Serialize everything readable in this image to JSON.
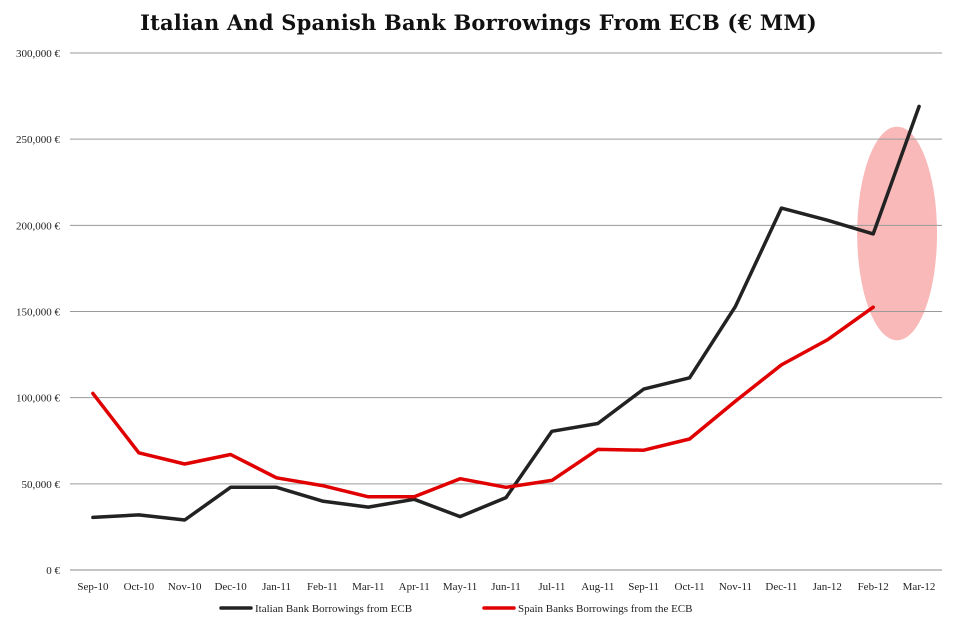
{
  "chart_data": {
    "type": "line",
    "title": "Italian And Spanish Bank Borrowings From ECB (€ MM)",
    "categories": [
      "Sep-10",
      "Oct-10",
      "Nov-10",
      "Dec-10",
      "Jan-11",
      "Feb-11",
      "Mar-11",
      "Apr-11",
      "May-11",
      "Jun-11",
      "Jul-11",
      "Aug-11",
      "Sep-11",
      "Oct-11",
      "Nov-11",
      "Dec-11",
      "Jan-12",
      "Feb-12",
      "Mar-12"
    ],
    "ylim": [
      0,
      300000
    ],
    "y_ticks": [
      0,
      50000,
      100000,
      150000,
      200000,
      250000,
      300000
    ],
    "y_tick_labels": [
      "0 €",
      "50,000 €",
      "100,000 €",
      "150,000 €",
      "200,000 €",
      "250,000 €",
      "300,000 €"
    ],
    "grid": "horizontal",
    "legend_position": "bottom",
    "series": [
      {
        "name": "Italian Bank Borrowings from ECB",
        "color": "#222222",
        "values": [
          30500,
          32000,
          29000,
          48000,
          48000,
          40000,
          36500,
          41000,
          31000,
          42000,
          80500,
          85000,
          105000,
          111500,
          153000,
          210000,
          203000,
          195000,
          269000
        ]
      },
      {
        "name": "Spain Banks Borrowings from the ECB",
        "color": "#e00000",
        "values": [
          102500,
          68000,
          61500,
          67000,
          53500,
          49000,
          42500,
          42500,
          53000,
          48000,
          52000,
          70000,
          69500,
          76000,
          98000,
          119000,
          133500,
          152500,
          null
        ]
      }
    ],
    "annotations": [
      {
        "type": "ellipse",
        "color": "#f7a8a8",
        "around_categories": [
          "Feb-12",
          "Mar-12"
        ]
      }
    ]
  }
}
